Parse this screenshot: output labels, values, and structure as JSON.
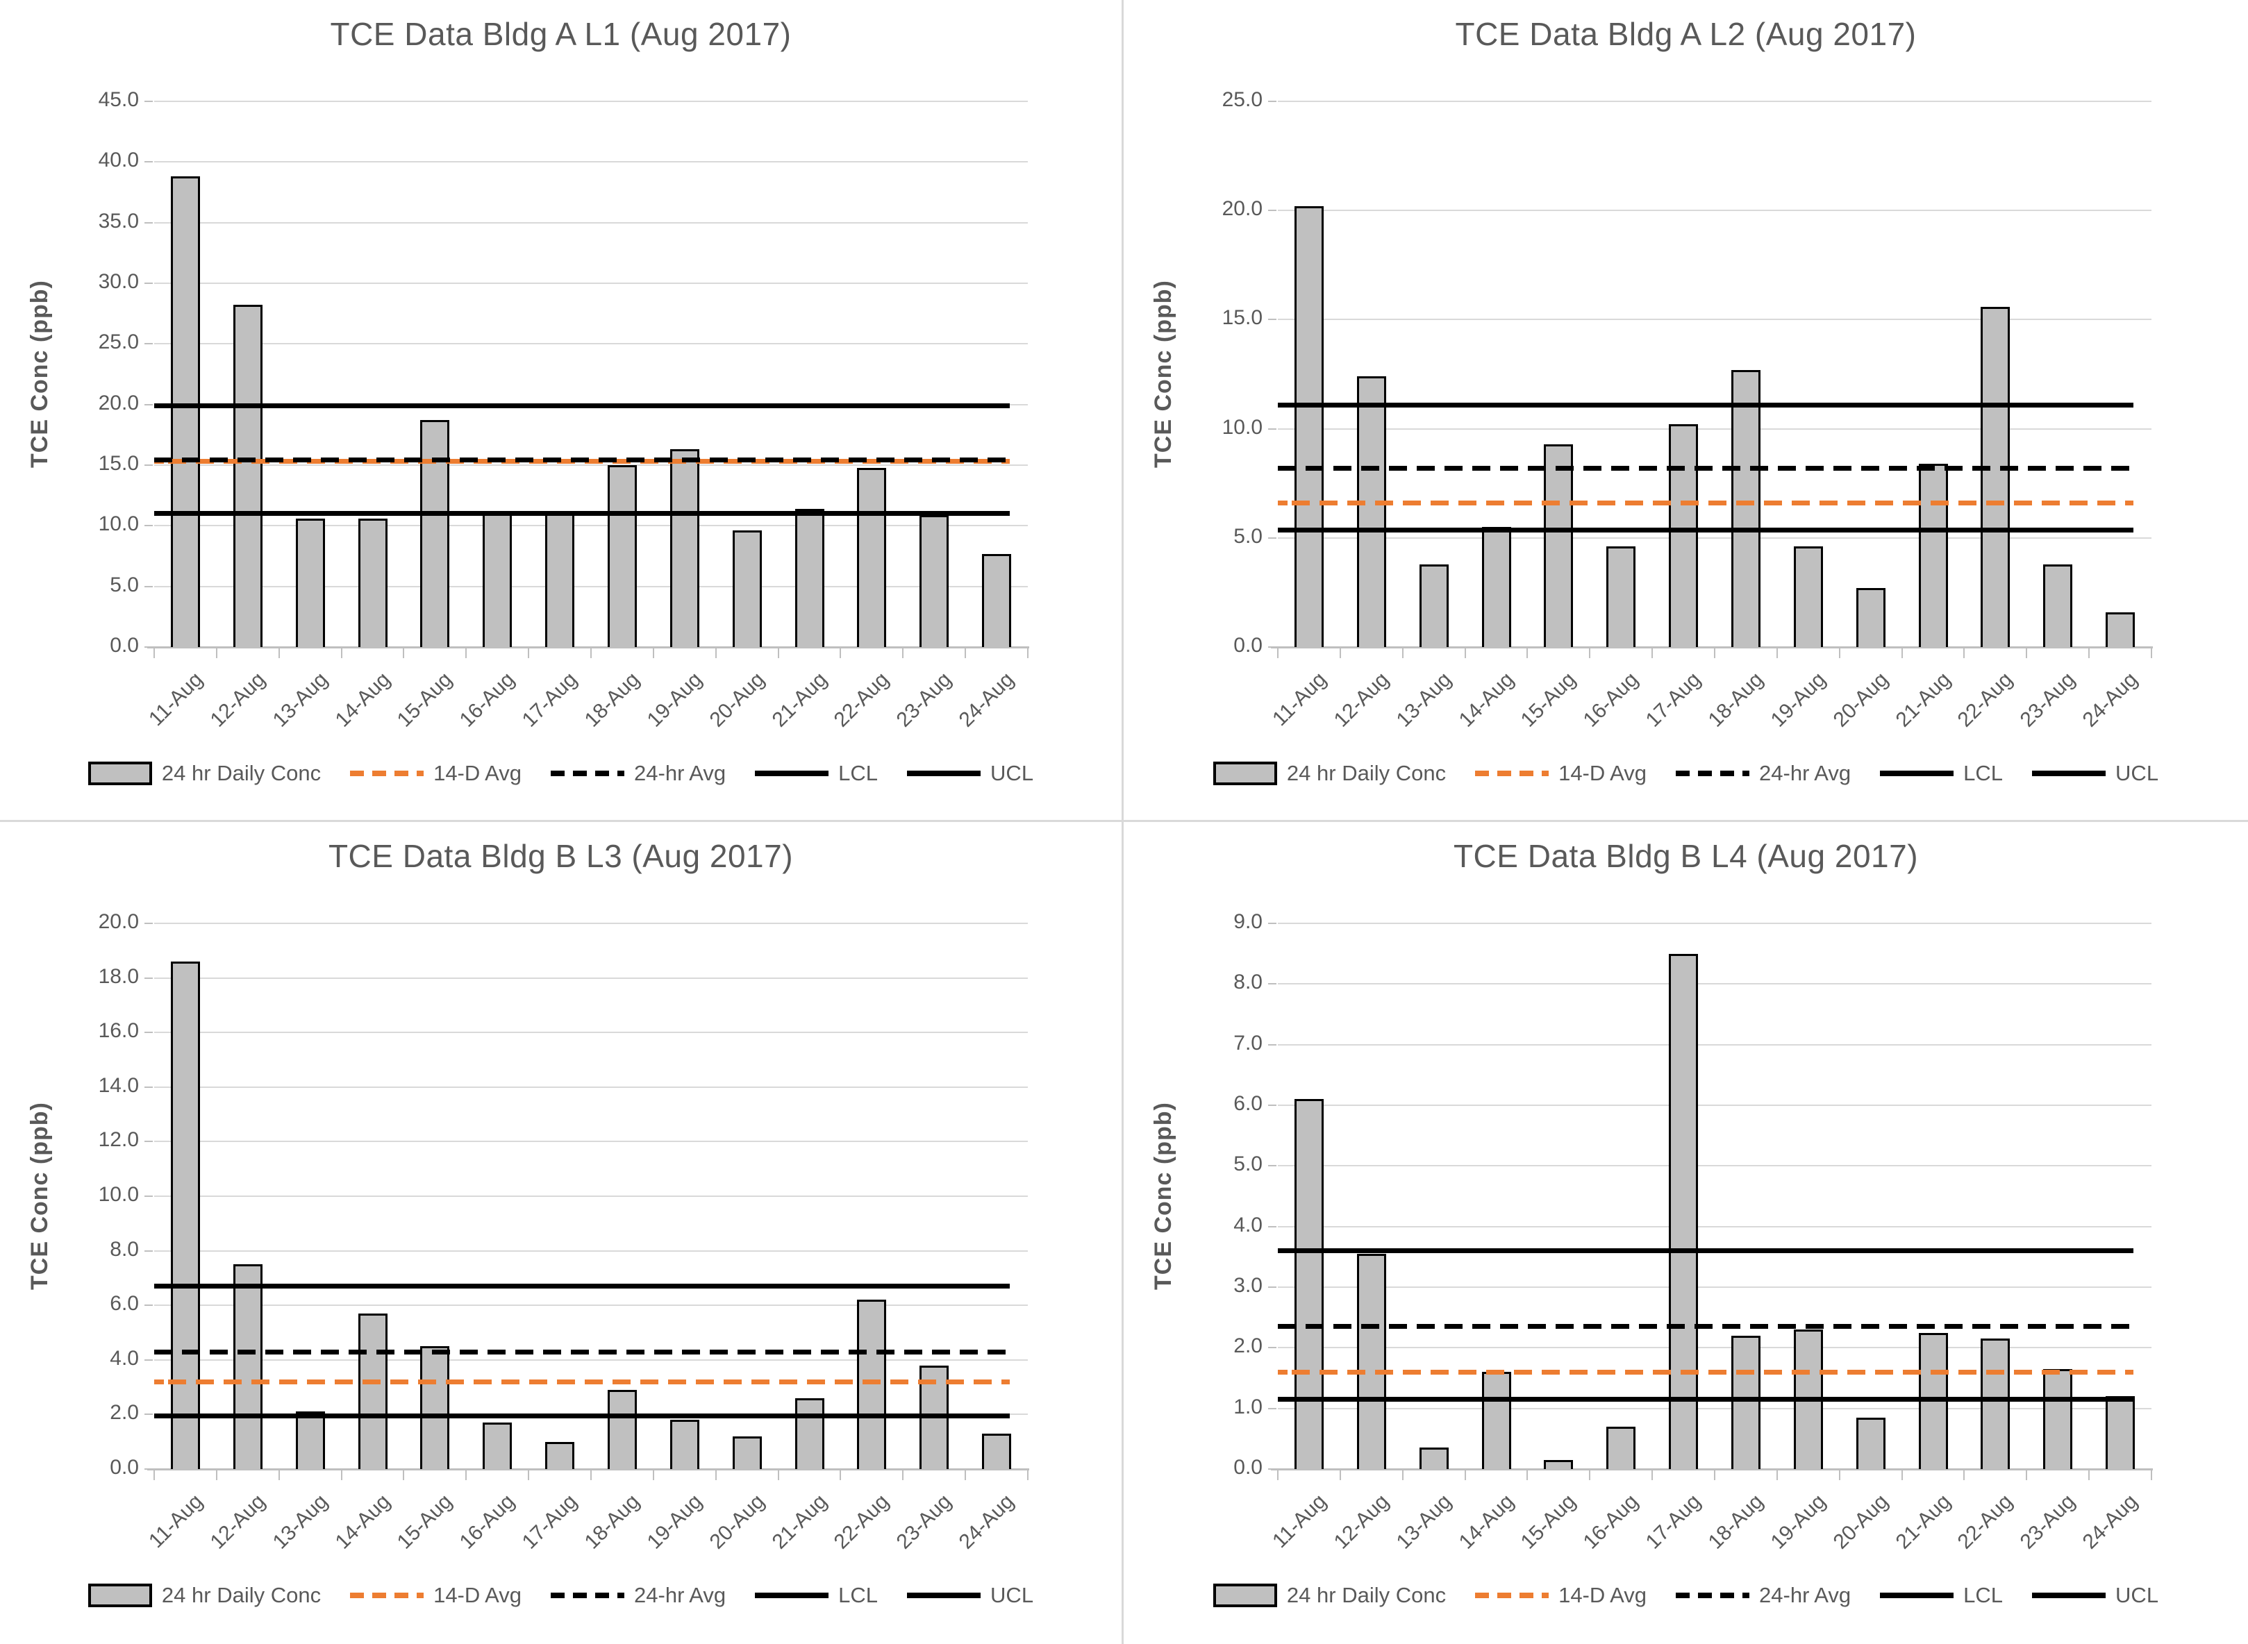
{
  "page": {
    "background": "#ffffff",
    "divider_color": "#d9d9d9",
    "text_color": "#595959",
    "gridline_color": "#d9d9d9",
    "bar_fill": "#c0c0c0",
    "bar_border": "#000000",
    "accent_orange": "#ED7D31"
  },
  "legend": {
    "items": [
      {
        "label": "24 hr Daily Conc",
        "swatch": "bar",
        "color": "#c0c0c0"
      },
      {
        "label": "14-D Avg",
        "swatch": "dashed",
        "color": "#ED7D31"
      },
      {
        "label": "24-hr Avg",
        "swatch": "dashed",
        "color": "#000000"
      },
      {
        "label": "LCL",
        "swatch": "solid",
        "color": "#000000"
      },
      {
        "label": "UCL",
        "swatch": "solid",
        "color": "#000000"
      }
    ]
  },
  "chart_data": [
    {
      "type": "bar",
      "title": "TCE Data Bldg A L1 (Aug 2017)",
      "ylabel": "TCE Conc (ppb)",
      "xlabel": "",
      "ylim": [
        0,
        45
      ],
      "ytick_step": 5,
      "ytick_labels": [
        "0.0",
        "5.0",
        "10.0",
        "15.0",
        "20.0",
        "25.0",
        "30.0",
        "35.0",
        "40.0",
        "45.0"
      ],
      "grid": true,
      "legend_position": "bottom",
      "categories": [
        "11-Aug",
        "12-Aug",
        "13-Aug",
        "14-Aug",
        "15-Aug",
        "16-Aug",
        "17-Aug",
        "18-Aug",
        "19-Aug",
        "20-Aug",
        "21-Aug",
        "22-Aug",
        "23-Aug",
        "24-Aug"
      ],
      "series": [
        {
          "name": "24 hr Daily Conc",
          "values": [
            38.8,
            28.2,
            10.6,
            10.6,
            18.7,
            11.0,
            11.0,
            15.0,
            16.3,
            9.6,
            11.4,
            14.8,
            10.9,
            7.7
          ]
        }
      ],
      "lines": [
        {
          "name": "14-D Avg",
          "value": 15.3,
          "style": "dashed",
          "color": "#ED7D31"
        },
        {
          "name": "24-hr Avg",
          "value": 15.45,
          "style": "dashed",
          "color": "#000000"
        },
        {
          "name": "LCL",
          "value": 11.0,
          "style": "solid",
          "color": "#000000"
        },
        {
          "name": "UCL",
          "value": 19.9,
          "style": "solid",
          "color": "#000000"
        }
      ]
    },
    {
      "type": "bar",
      "title": "TCE Data Bldg A L2 (Aug 2017)",
      "ylabel": "TCE Conc (ppb)",
      "xlabel": "",
      "ylim": [
        0,
        25
      ],
      "ytick_step": 5,
      "ytick_labels": [
        "0.0",
        "5.0",
        "10.0",
        "15.0",
        "20.0",
        "25.0"
      ],
      "grid": true,
      "legend_position": "bottom",
      "categories": [
        "11-Aug",
        "12-Aug",
        "13-Aug",
        "14-Aug",
        "15-Aug",
        "16-Aug",
        "17-Aug",
        "18-Aug",
        "19-Aug",
        "20-Aug",
        "21-Aug",
        "22-Aug",
        "23-Aug",
        "24-Aug"
      ],
      "series": [
        {
          "name": "24 hr Daily Conc",
          "values": [
            20.2,
            12.4,
            3.8,
            5.5,
            9.3,
            4.6,
            10.2,
            12.7,
            4.6,
            2.7,
            8.4,
            15.6,
            3.8,
            1.6
          ]
        }
      ],
      "lines": [
        {
          "name": "14-D Avg",
          "value": 6.6,
          "style": "dashed",
          "color": "#ED7D31"
        },
        {
          "name": "24-hr Avg",
          "value": 8.2,
          "style": "dashed",
          "color": "#000000"
        },
        {
          "name": "LCL",
          "value": 5.35,
          "style": "solid",
          "color": "#000000"
        },
        {
          "name": "UCL",
          "value": 11.1,
          "style": "solid",
          "color": "#000000"
        }
      ]
    },
    {
      "type": "bar",
      "title": "TCE Data Bldg B L3 (Aug 2017)",
      "ylabel": "TCE Conc (ppb)",
      "xlabel": "",
      "ylim": [
        0,
        20
      ],
      "ytick_step": 2,
      "ytick_labels": [
        "0.0",
        "2.0",
        "4.0",
        "6.0",
        "8.0",
        "10.0",
        "12.0",
        "14.0",
        "16.0",
        "18.0",
        "20.0"
      ],
      "grid": true,
      "legend_position": "bottom",
      "categories": [
        "11-Aug",
        "12-Aug",
        "13-Aug",
        "14-Aug",
        "15-Aug",
        "16-Aug",
        "17-Aug",
        "18-Aug",
        "19-Aug",
        "20-Aug",
        "21-Aug",
        "22-Aug",
        "23-Aug",
        "24-Aug"
      ],
      "series": [
        {
          "name": "24 hr Daily Conc",
          "values": [
            18.6,
            7.5,
            2.1,
            5.7,
            4.5,
            1.7,
            1.0,
            2.9,
            1.8,
            1.2,
            2.6,
            6.2,
            3.8,
            1.3
          ]
        }
      ],
      "lines": [
        {
          "name": "14-D Avg",
          "value": 3.2,
          "style": "dashed",
          "color": "#ED7D31"
        },
        {
          "name": "24-hr Avg",
          "value": 4.3,
          "style": "dashed",
          "color": "#000000"
        },
        {
          "name": "LCL",
          "value": 1.95,
          "style": "solid",
          "color": "#000000"
        },
        {
          "name": "UCL",
          "value": 6.7,
          "style": "solid",
          "color": "#000000"
        }
      ]
    },
    {
      "type": "bar",
      "title": "TCE Data Bldg B L4 (Aug 2017)",
      "ylabel": "TCE Conc (ppb)",
      "xlabel": "",
      "ylim": [
        0,
        9
      ],
      "ytick_step": 1,
      "ytick_labels": [
        "0.0",
        "1.0",
        "2.0",
        "3.0",
        "4.0",
        "5.0",
        "6.0",
        "7.0",
        "8.0",
        "9.0"
      ],
      "grid": true,
      "legend_position": "bottom",
      "categories": [
        "11-Aug",
        "12-Aug",
        "13-Aug",
        "14-Aug",
        "15-Aug",
        "16-Aug",
        "17-Aug",
        "18-Aug",
        "19-Aug",
        "20-Aug",
        "21-Aug",
        "22-Aug",
        "23-Aug",
        "24-Aug"
      ],
      "series": [
        {
          "name": "24 hr Daily Conc",
          "values": [
            6.1,
            3.55,
            0.35,
            1.6,
            0.15,
            0.7,
            8.5,
            2.2,
            2.3,
            0.85,
            2.25,
            2.15,
            1.65,
            1.2
          ]
        }
      ],
      "lines": [
        {
          "name": "14-D Avg",
          "value": 1.6,
          "style": "dashed",
          "color": "#ED7D31"
        },
        {
          "name": "24-hr Avg",
          "value": 2.35,
          "style": "dashed",
          "color": "#000000"
        },
        {
          "name": "LCL",
          "value": 1.15,
          "style": "solid",
          "color": "#000000"
        },
        {
          "name": "UCL",
          "value": 3.6,
          "style": "solid",
          "color": "#000000"
        }
      ]
    }
  ]
}
